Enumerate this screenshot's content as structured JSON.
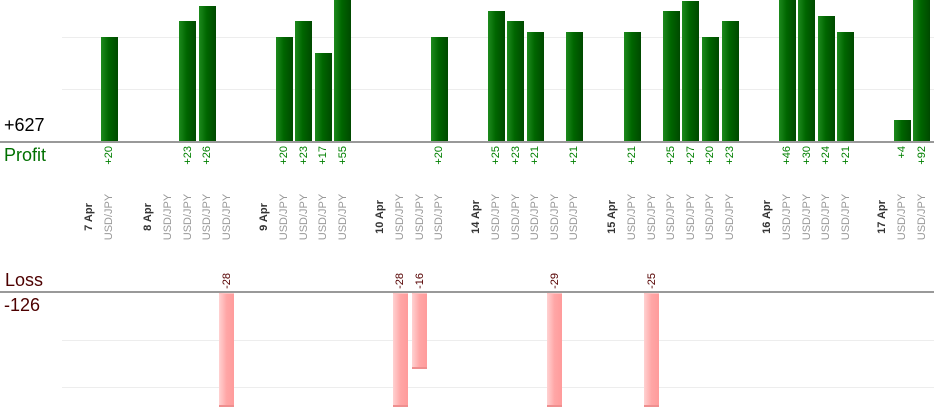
{
  "chart_data": {
    "type": "bar",
    "title": "",
    "orientation": "vertical",
    "grid": true,
    "panels": {
      "profit": {
        "axis_label": "Profit",
        "total_label": "+627",
        "total": 627,
        "gridline_values": [
          10,
          20
        ],
        "bar_color": "#006600",
        "value_text_color": "#008000",
        "total_text_color": "#000000"
      },
      "loss": {
        "axis_label": "Loss",
        "total_label": "-126",
        "total": -126,
        "gridline_values": [
          -10,
          -20
        ],
        "bar_color": "#ffa6a6",
        "value_text_color": "#550000",
        "total_text_color": "#550000"
      }
    },
    "groups": [
      {
        "date": "7 Apr",
        "trades": [
          {
            "symbol": "USD/JPY",
            "value": 20
          }
        ]
      },
      {
        "date": "8 Apr",
        "trades": [
          {
            "symbol": "USD/JPY",
            "value": 0
          },
          {
            "symbol": "USD/JPY",
            "value": 23
          },
          {
            "symbol": "USD/JPY",
            "value": 26
          },
          {
            "symbol": "USD/JPY",
            "value": -28
          }
        ]
      },
      {
        "date": "9 Apr",
        "trades": [
          {
            "symbol": "USD/JPY",
            "value": 20
          },
          {
            "symbol": "USD/JPY",
            "value": 23
          },
          {
            "symbol": "USD/JPY",
            "value": 17
          },
          {
            "symbol": "USD/JPY",
            "value": 55
          }
        ]
      },
      {
        "date": "10 Apr",
        "trades": [
          {
            "symbol": "USD/JPY",
            "value": -28
          },
          {
            "symbol": "USD/JPY",
            "value": -16
          },
          {
            "symbol": "USD/JPY",
            "value": 20
          }
        ]
      },
      {
        "date": "14 Apr",
        "trades": [
          {
            "symbol": "USD/JPY",
            "value": 25
          },
          {
            "symbol": "USD/JPY",
            "value": 23
          },
          {
            "symbol": "USD/JPY",
            "value": 21
          },
          {
            "symbol": "USD/JPY",
            "value": -29
          },
          {
            "symbol": "USD/JPY",
            "value": 21
          }
        ]
      },
      {
        "date": "15 Apr",
        "trades": [
          {
            "symbol": "USD/JPY",
            "value": 21
          },
          {
            "symbol": "USD/JPY",
            "value": -25
          },
          {
            "symbol": "USD/JPY",
            "value": 25
          },
          {
            "symbol": "USD/JPY",
            "value": 27
          },
          {
            "symbol": "USD/JPY",
            "value": 20
          },
          {
            "symbol": "USD/JPY",
            "value": 23
          }
        ]
      },
      {
        "date": "16 Apr",
        "trades": [
          {
            "symbol": "USD/JPY",
            "value": 46
          },
          {
            "symbol": "USD/JPY",
            "value": 30
          },
          {
            "symbol": "USD/JPY",
            "value": 24
          },
          {
            "symbol": "USD/JPY",
            "value": 21
          }
        ]
      },
      {
        "date": "17 Apr",
        "trades": [
          {
            "symbol": "USD/JPY",
            "value": 4
          },
          {
            "symbol": "USD/JPY",
            "value": 92
          }
        ]
      }
    ],
    "colors": {
      "axis_line": "#999999",
      "gridline": "#ededed",
      "date_text": "#333333",
      "symbol_text": "#999999"
    }
  }
}
